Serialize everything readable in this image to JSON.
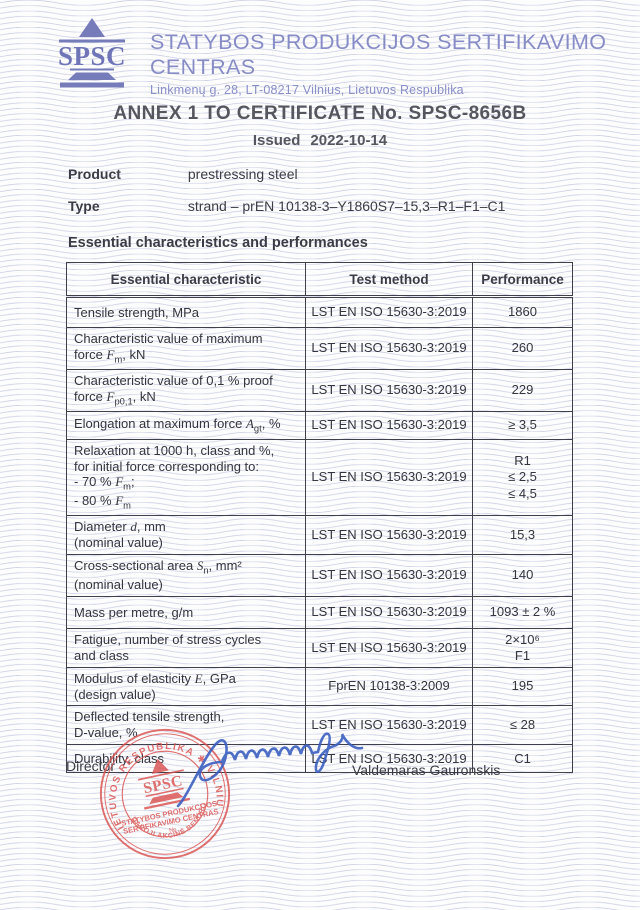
{
  "header": {
    "logo_text": "SPSC",
    "org_name": "STATYBOS PRODUKCIJOS SERTIFIKAVIMO CENTRAS",
    "org_address": "Linkmenų g. 28, LT-08217 Vilnius, Lietuvos Respublika"
  },
  "title": {
    "main": "ANNEX 1 TO CERTIFICATE No. SPSC-8656B",
    "issued_label": "Issued",
    "issued_date": "2022-10-14"
  },
  "fields": {
    "product_label": "Product",
    "product_value": "prestressing steel",
    "type_label": "Type",
    "type_value": "strand – prEN 10138-3–Y1860S7–15,3–R1–F1–C1"
  },
  "section_heading": "Essential characteristics and performances",
  "table": {
    "headers": [
      "Essential characteristic",
      "Test method",
      "Performance"
    ],
    "rows": [
      {
        "characteristic": "Tensile strength, MPa",
        "test_method": "LST EN ISO 15630-3:2019",
        "performance": "1860"
      },
      {
        "characteristic": "Characteristic value of maximum\nforce  *F*_m_, kN",
        "test_method": "LST EN ISO 15630-3:2019",
        "performance": "260"
      },
      {
        "characteristic": "Characteristic value of 0,1 % proof\nforce  *F*_p0,1_, kN",
        "test_method": "LST EN ISO 15630-3:2019",
        "performance": "229"
      },
      {
        "characteristic": "Elongation at maximum force  *A*_gt_, %",
        "test_method": "LST EN ISO 15630-3:2019",
        "performance": "≥ 3,5"
      },
      {
        "characteristic": "Relaxation at 1000 h, class and %,\nfor initial force corresponding to:\n- 70 %  *F*_m_;\n- 80 %  *F*_m_",
        "test_method": "LST EN ISO 15630-3:2019",
        "performance": "R1\n≤ 2,5\n≤ 4,5"
      },
      {
        "characteristic": "Diameter  *d*, mm\n(nominal value)",
        "test_method": "LST EN ISO 15630-3:2019",
        "performance": "15,3"
      },
      {
        "characteristic": "Cross-sectional area  *S*_n_, mm²\n(nominal value)",
        "test_method": "LST EN ISO 15630-3:2019",
        "performance": "140"
      },
      {
        "characteristic": "Mass per metre, g/m",
        "test_method": "LST EN ISO 15630-3:2019",
        "performance": "1093 ± 2 %"
      },
      {
        "characteristic": "Fatigue, number of stress cycles\nand class",
        "test_method": "LST EN ISO 15630-3:2019",
        "performance": "2×10⁶\nF1"
      },
      {
        "characteristic": "Modulus of elasticity *E*, GPa\n(design value)",
        "test_method": "FprEN 10138-3:2009",
        "performance": "195"
      },
      {
        "characteristic": "Deflected tensile strength,\nD-value, %",
        "test_method": "LST EN ISO 15630-3:2019",
        "performance": "≤ 28"
      },
      {
        "characteristic": "Durability, class",
        "test_method": "LST EN ISO 15630-3:2019",
        "performance": "C1"
      }
    ]
  },
  "signature": {
    "director_label": "Director",
    "name": "Valdemaras Gauronskis",
    "stamp": {
      "ring_top": "LIETUVOS RESPUBLIKA ✱ VILNIUS",
      "ring_bottom": "✱ UŽDAROJI AKCINĖ BENDROVĖ ✱",
      "center_logo": "SPSC",
      "line1": "STATYBOS PRODUKCIJOS",
      "line2": "SERTIFIKAVIMO CENTRAS",
      "number_label": "№"
    }
  },
  "colors": {
    "guilloche": "#b7bcd8",
    "brand_blue": "#7b81bd",
    "heading_gray": "#56565f",
    "body_text": "#3a3a46",
    "stamp_red": "#d95250",
    "signature_ink": "#3b5fc0"
  }
}
